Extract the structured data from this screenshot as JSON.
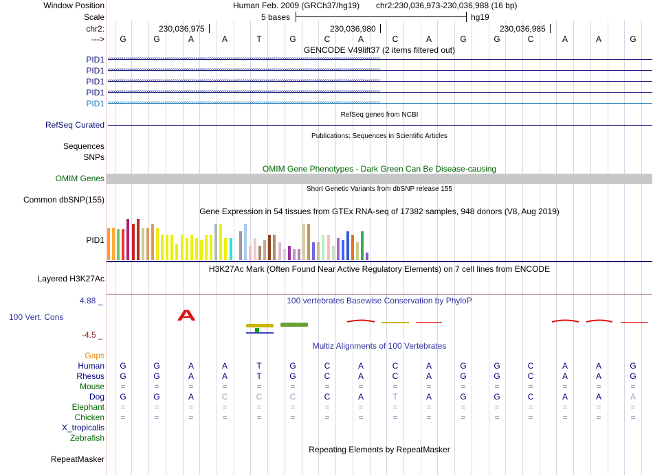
{
  "header": {
    "window_position_label": "Window Position",
    "assembly": "Human Feb. 2009 (GRCh37/hg19)",
    "position": "chr2:230,036,973-230,036,988 (16 bp)",
    "scale_label": "Scale",
    "scale_text": "5 bases",
    "db": "hg19",
    "chrom_label": "chr2:",
    "arrow_label": "--->",
    "ticks": [
      "230,036,975",
      "230,036,980",
      "230,036,985"
    ]
  },
  "sequence": [
    "G",
    "G",
    "A",
    "A",
    "T",
    "G",
    "C",
    "A",
    "C",
    "A",
    "G",
    "G",
    "C",
    "A",
    "A",
    "G"
  ],
  "tracks": {
    "gencode_title": "GENCODE V49lift37 (2 items filtered out)",
    "gencode_items": [
      "PID1",
      "PID1",
      "PID1",
      "PID1",
      "PID1"
    ],
    "refseq_title": "RefSeq genes from NCBI",
    "refseq_label": "RefSeq Curated",
    "pubs_title": "Publications: Sequences in Scientific Articles",
    "sequences_label": "Sequences",
    "snps_label": "SNPs",
    "omim_title": "OMIM Gene Phenotypes - Dark Green Can Be Disease-causing",
    "omim_label": "OMIM Genes",
    "dbsnp_title": "Short Genetic Variants from dbSNP release 155",
    "dbsnp_label": "Common dbSNP(155)",
    "gtex_title": "Gene Expression in 54 tissues from GTEx RNA-seq of 17382 samples, 948 donors (V8, Aug 2019)",
    "gtex_label": "PID1",
    "h3k27_title": "H3K27Ac Mark (Often Found Near Active Regulatory Elements) on 7 cell lines from ENCODE",
    "h3k27_label": "Layered H3K27Ac",
    "cons_title": "100 vertebrates Basewise Conservation by PhyloP",
    "cons_label": "100 Vert. Cons",
    "cons_max": "4.88 _",
    "cons_min": "-4.5 _",
    "cons_letter": "A",
    "multiz_title": "Multiz Alignments of 100 Vertebrates",
    "gaps_label": "Gaps",
    "repeat_title": "Repeating Elements by RepeatMasker",
    "repeat_label": "RepeatMasker"
  },
  "gtex_bars": {
    "values": [
      18,
      18,
      17,
      17,
      23,
      20,
      23,
      18,
      18,
      20,
      18,
      14,
      14,
      14,
      9,
      14,
      12,
      14,
      12,
      11,
      14,
      14,
      20,
      20,
      12,
      12,
      16,
      16,
      20,
      8,
      12,
      8,
      11,
      14,
      14,
      10,
      6,
      8,
      6,
      6,
      20,
      20,
      10,
      10,
      14,
      14,
      8,
      12,
      11,
      16,
      14,
      10,
      16,
      4
    ],
    "colors": [
      "#ff9933",
      "#ffaa33",
      "#66cc66",
      "#ee3333",
      "#aa2277",
      "#cc2222",
      "#aa3322",
      "#cccc99",
      "#dd9966",
      "#dd9966",
      "#eeee11",
      "#eeee11",
      "#eeee11",
      "#eeee11",
      "#eeee11",
      "#eeee11",
      "#eeee11",
      "#eeee11",
      "#eeee11",
      "#eeee11",
      "#eeee11",
      "#eeee11",
      "#aabbbb",
      "#eeee11",
      "#eeee11",
      "#33dddd",
      "#ffffff",
      "#9999aa",
      "#aaccee",
      "#ffbbbb",
      "#eecccc",
      "#aa8866",
      "#ccaa99",
      "#884422",
      "#bb8866",
      "#ddbbcc",
      "#ddccdd",
      "#993399",
      "#bb99cc",
      "#aa88aa",
      "#ddcc99",
      "#bb9966",
      "#7766dd",
      "#ccbb99",
      "#bbeebb",
      "#ffbbbb",
      "#ccddcc",
      "#aa66cc",
      "#3366ff",
      "#3355dd",
      "#dd7722",
      "#cccc88",
      "#33aa55",
      "#8855bb"
    ]
  },
  "species": [
    {
      "name": "Human",
      "bases": [
        "G",
        "G",
        "A",
        "A",
        "T",
        "G",
        "C",
        "A",
        "C",
        "A",
        "G",
        "G",
        "C",
        "A",
        "A",
        "G"
      ]
    },
    {
      "name": "Rhesus",
      "bases": [
        "G",
        "G",
        "A",
        "A",
        "T",
        "G",
        "C",
        "A",
        "C",
        "A",
        "G",
        "G",
        "C",
        "A",
        "A",
        "G"
      ]
    },
    {
      "name": "Mouse",
      "bases": [
        "=",
        "=",
        "=",
        "=",
        "=",
        "=",
        "=",
        "=",
        "=",
        "=",
        "=",
        "=",
        "=",
        "=",
        "=",
        "="
      ]
    },
    {
      "name": "Dog",
      "bases": [
        "G",
        "G",
        "A",
        "C",
        "C",
        "C",
        "C",
        "A",
        "T",
        "A",
        "G",
        "G",
        "C",
        "A",
        "A",
        "A"
      ]
    },
    {
      "name": "Elephant",
      "bases": [
        "=",
        "=",
        "=",
        "=",
        "=",
        "=",
        "=",
        "=",
        "=",
        "=",
        "=",
        "=",
        "=",
        "=",
        "=",
        "="
      ]
    },
    {
      "name": "Chicken",
      "bases": [
        "=",
        "=",
        "=",
        "=",
        "=",
        "=",
        "=",
        "=",
        "=",
        "=",
        "=",
        "=",
        "=",
        "=",
        "=",
        "="
      ]
    },
    {
      "name": "X_tropicalis",
      "bases": []
    },
    {
      "name": "Zebrafish",
      "bases": []
    }
  ],
  "colors": {
    "navy": "#000080",
    "gencode": "#0c0c78",
    "gencode_highlight": "#1c7ab8",
    "omim": "#006400",
    "gaps": "#e08a00",
    "refseq_label": "#0c0c78",
    "species_green": "#006400",
    "cons_max": "#3030a0",
    "cons_min": "#802020"
  }
}
